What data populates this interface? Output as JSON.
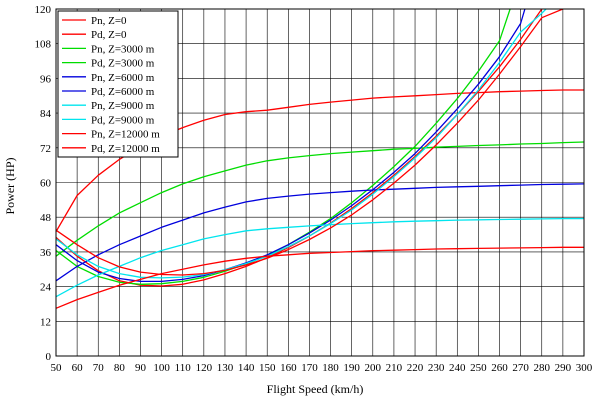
{
  "chart_data": {
    "type": "line",
    "title": "",
    "xlabel": "Flight Speed (km/h)",
    "ylabel": "Power (HP)",
    "xlim": [
      50,
      300
    ],
    "ylim": [
      0,
      120
    ],
    "xticks": [
      50,
      60,
      70,
      80,
      90,
      100,
      110,
      120,
      130,
      140,
      150,
      160,
      170,
      180,
      190,
      200,
      210,
      220,
      230,
      240,
      250,
      260,
      270,
      280,
      290,
      300
    ],
    "yticks": [
      0,
      12,
      24,
      36,
      48,
      60,
      72,
      84,
      96,
      108,
      120
    ],
    "grid": true,
    "legend_position": "top-left",
    "series": [
      {
        "name": "Pn, Z=0",
        "color": "#ff0000",
        "x": [
          50,
          60,
          70,
          80,
          90,
          100,
          110,
          120,
          130,
          140,
          150,
          160,
          170,
          180,
          190,
          200,
          210,
          220,
          230,
          240,
          250,
          260,
          270,
          280,
          290,
          300
        ],
        "y": [
          43.0,
          55.5,
          62.5,
          68.0,
          72.5,
          76.0,
          79.0,
          81.5,
          83.5,
          84.5,
          85.0,
          86.0,
          87.0,
          87.8,
          88.5,
          89.2,
          89.6,
          90.0,
          90.4,
          90.8,
          91.1,
          91.4,
          91.6,
          91.8,
          92.0,
          92.0
        ]
      },
      {
        "name": "Pd, Z=0",
        "color": "#ff0000",
        "x": [
          50,
          60,
          70,
          80,
          90,
          100,
          110,
          120,
          130,
          140,
          150,
          160,
          170,
          180,
          190,
          200,
          210,
          220,
          230,
          240,
          250,
          260,
          270,
          280
        ],
        "y": [
          41.0,
          34.5,
          29.5,
          26.0,
          24.5,
          24.2,
          24.8,
          26.3,
          28.5,
          31.0,
          34.0,
          37.5,
          41.5,
          46.0,
          51.0,
          56.5,
          62.5,
          69.0,
          76.0,
          83.5,
          91.5,
          100.0,
          109.5,
          120.0
        ]
      },
      {
        "name": "Pn, Z=3000 m",
        "color": "#00dd00",
        "x": [
          50,
          60,
          70,
          80,
          90,
          100,
          110,
          120,
          130,
          140,
          150,
          160,
          170,
          180,
          190,
          200,
          210,
          220,
          230,
          240,
          250,
          260,
          270,
          280,
          290,
          300
        ],
        "y": [
          34.5,
          40.0,
          45.0,
          49.5,
          53.0,
          56.5,
          59.5,
          62.0,
          64.0,
          66.0,
          67.5,
          68.5,
          69.3,
          70.0,
          70.5,
          71.0,
          71.5,
          71.8,
          72.2,
          72.5,
          72.8,
          73.0,
          73.3,
          73.5,
          73.8,
          74.0
        ]
      },
      {
        "name": "Pd, Z=3000 m",
        "color": "#00dd00",
        "x": [
          50,
          60,
          70,
          80,
          90,
          100,
          110,
          120,
          130,
          140,
          150,
          160,
          170,
          180,
          190,
          200,
          210,
          220,
          230,
          240,
          250,
          260,
          265
        ],
        "y": [
          36.5,
          31.0,
          27.5,
          25.5,
          24.8,
          25.0,
          25.8,
          27.2,
          29.3,
          31.8,
          34.8,
          38.5,
          42.8,
          47.5,
          53.0,
          59.0,
          65.5,
          72.5,
          80.5,
          89.0,
          98.5,
          109.0,
          120.0
        ]
      },
      {
        "name": "Pn, Z=6000 m",
        "color": "#0000dd",
        "x": [
          50,
          60,
          70,
          80,
          90,
          100,
          110,
          120,
          130,
          140,
          150,
          160,
          170,
          180,
          190,
          200,
          210,
          220,
          230,
          240,
          250,
          260,
          270,
          280,
          290,
          300
        ],
        "y": [
          26.0,
          31.0,
          35.0,
          38.5,
          41.5,
          44.5,
          47.0,
          49.5,
          51.5,
          53.3,
          54.5,
          55.3,
          56.0,
          56.5,
          57.0,
          57.4,
          57.7,
          58.0,
          58.3,
          58.5,
          58.7,
          58.9,
          59.1,
          59.3,
          59.4,
          59.5
        ]
      },
      {
        "name": "Pd, Z=6000 m",
        "color": "#0000dd",
        "x": [
          50,
          60,
          70,
          80,
          90,
          100,
          110,
          120,
          130,
          140,
          150,
          160,
          170,
          180,
          190,
          200,
          210,
          220,
          230,
          240,
          250,
          260,
          270,
          272
        ],
        "y": [
          38.5,
          33.0,
          29.0,
          26.8,
          25.8,
          25.8,
          26.5,
          27.8,
          29.8,
          32.2,
          35.0,
          38.5,
          42.5,
          47.0,
          52.0,
          57.5,
          63.5,
          70.0,
          77.5,
          85.5,
          94.0,
          103.5,
          115.0,
          120.0
        ]
      },
      {
        "name": "Pn, Z=9000 m",
        "color": "#00e5ee",
        "x": [
          50,
          60,
          70,
          80,
          90,
          100,
          110,
          120,
          130,
          140,
          150,
          160,
          170,
          180,
          190,
          200,
          210,
          220,
          230,
          240,
          250,
          260,
          270,
          280,
          290,
          300
        ],
        "y": [
          20.5,
          24.5,
          28.0,
          31.0,
          34.0,
          36.5,
          38.5,
          40.5,
          42.0,
          43.3,
          44.0,
          44.5,
          45.0,
          45.4,
          45.8,
          46.1,
          46.4,
          46.6,
          46.8,
          47.0,
          47.1,
          47.2,
          47.3,
          47.4,
          47.5,
          47.5
        ]
      },
      {
        "name": "Pd, Z=9000 m",
        "color": "#00e5ee",
        "x": [
          50,
          60,
          70,
          80,
          90,
          100,
          110,
          120,
          130,
          140,
          150,
          160,
          170,
          180,
          190,
          200,
          210,
          220,
          230,
          240,
          250,
          260,
          270,
          280,
          282
        ],
        "y": [
          40.5,
          35.0,
          31.0,
          28.5,
          27.2,
          27.0,
          27.3,
          28.2,
          29.8,
          32.0,
          34.5,
          37.8,
          41.5,
          45.8,
          50.5,
          56.0,
          62.0,
          68.5,
          75.5,
          83.5,
          92.0,
          101.5,
          112.0,
          118.5,
          120.0
        ]
      },
      {
        "name": "Pn, Z=12000 m",
        "color": "#ff0000",
        "x": [
          50,
          60,
          70,
          80,
          90,
          100,
          110,
          120,
          130,
          140,
          150,
          160,
          170,
          180,
          190,
          200,
          210,
          220,
          230,
          240,
          250,
          260,
          270,
          280,
          290,
          300
        ],
        "y": [
          16.5,
          19.5,
          22.0,
          24.5,
          26.5,
          28.5,
          30.0,
          31.5,
          32.8,
          33.8,
          34.5,
          35.0,
          35.5,
          35.8,
          36.1,
          36.4,
          36.6,
          36.8,
          37.0,
          37.1,
          37.2,
          37.3,
          37.4,
          37.5,
          37.6,
          37.6
        ]
      },
      {
        "name": "Pd, Z=12000 m",
        "color": "#ff0000",
        "x": [
          50,
          60,
          70,
          80,
          90,
          100,
          110,
          120,
          130,
          140,
          150,
          160,
          170,
          180,
          190,
          200,
          210,
          220,
          230,
          240,
          250,
          260,
          270,
          280,
          290
        ],
        "y": [
          43.5,
          38.5,
          34.0,
          30.8,
          29.0,
          28.2,
          28.0,
          28.5,
          29.6,
          31.5,
          33.8,
          36.8,
          40.3,
          44.3,
          48.8,
          54.0,
          59.8,
          66.0,
          73.0,
          80.5,
          88.5,
          97.5,
          107.0,
          117.0,
          120.0
        ]
      }
    ]
  }
}
